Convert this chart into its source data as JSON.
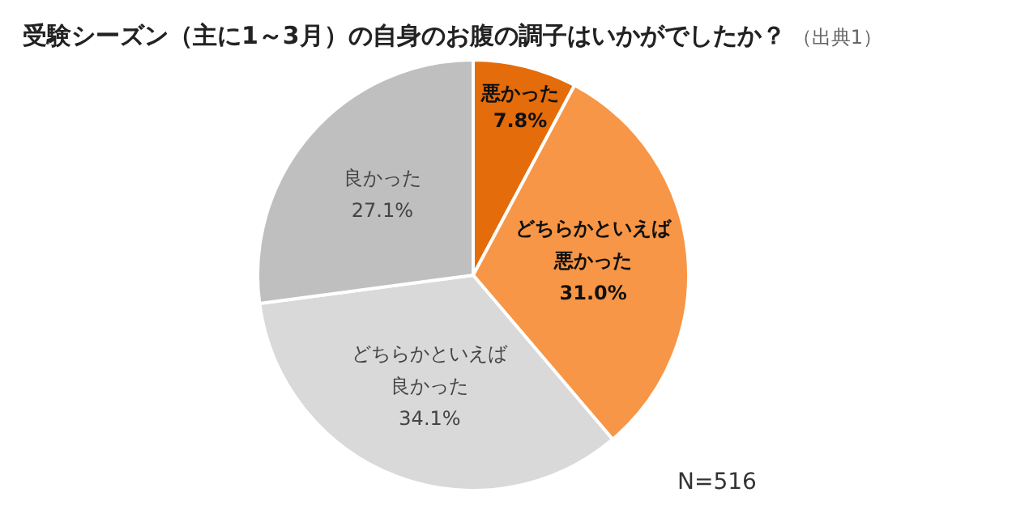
{
  "chart_data": {
    "type": "pie",
    "title": "受験シーズン（主に1～3月）の自身のお腹の調子はいかがでしたか？",
    "subtitle": "（出典1）",
    "categories": [
      "悪かった",
      "どちらかといえば悪かった",
      "どちらかといえば良かった",
      "良かった"
    ],
    "values": [
      7.8,
      31.0,
      34.1,
      27.1
    ],
    "colors": [
      "#e46c0a",
      "#f79646",
      "#d9d9d9",
      "#bfbfbf"
    ],
    "value_labels": [
      "7.8%",
      "31.0%",
      "34.1%",
      "27.1%"
    ],
    "legend": false,
    "annotations": [
      "N=516"
    ]
  }
}
